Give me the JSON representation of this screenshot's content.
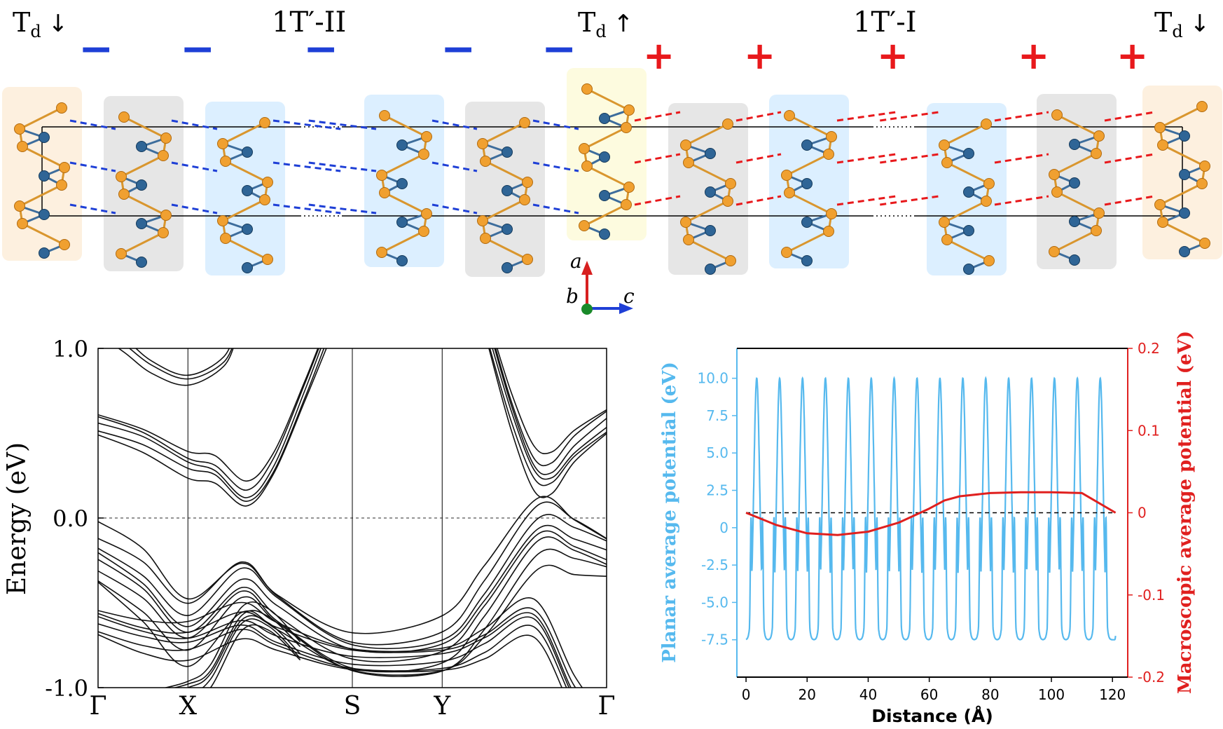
{
  "structure_panel": {
    "phase_labels": [
      {
        "main": "T",
        "sub": "d",
        "arrow": "↓"
      },
      {
        "main": "1T′-II"
      },
      {
        "main": "T",
        "sub": "d",
        "arrow": "↑"
      },
      {
        "main": "1T′-I"
      },
      {
        "main": "T",
        "sub": "d",
        "arrow": "↓"
      }
    ],
    "polarity_signs": [
      "−",
      "−",
      "−",
      "−",
      "−",
      "+",
      "+",
      "+",
      "+",
      "+"
    ],
    "layer_stacking": [
      "Td-down",
      "1T′-II",
      "1T′-II",
      "1T′-II",
      "1T′-II",
      "Td-up",
      "1T′-I",
      "1T′-I",
      "1T′-I",
      "1T′-I",
      "Td-down"
    ],
    "axes": {
      "a": "a",
      "b": "b",
      "c": "c"
    },
    "colors": {
      "minus": "#1e3fd6",
      "plus": "#e8191c",
      "metal_atom": "#2f6596",
      "chalcogen_atom": "#f0a030",
      "td_down_box": "#fdf0df",
      "gray_box": "#e6e6e6",
      "blue_box": "#dcefff",
      "td_up_box": "#fdfbdf"
    }
  },
  "chart_data": [
    {
      "type": "line",
      "title": "",
      "ylabel": "Energy (eV)",
      "xlabel": "",
      "ylim": [
        -1.0,
        1.0
      ],
      "yticks": [
        "1.0",
        "0.0",
        "-1.0"
      ],
      "kpath": [
        "Γ",
        "X",
        "S",
        "Y",
        "Γ"
      ],
      "kpath_positions": [
        0,
        1,
        2.83,
        3.83,
        5.66
      ],
      "fermi_level": 0.0,
      "bands": [
        {
          "name": "conduction-upper",
          "x": [
            0,
            0.3,
            0.6,
            1.0,
            1.4,
            1.55
          ],
          "y": [
            1.12,
            1.02,
            0.9,
            0.82,
            0.92,
            1.1
          ],
          "copies": 3,
          "spread": 0.035
        },
        {
          "name": "conduction-main",
          "x": [
            0,
            0.5,
            1.0,
            1.3,
            1.65,
            1.95,
            2.3,
            2.55
          ],
          "y": [
            0.56,
            0.48,
            0.33,
            0.28,
            0.12,
            0.3,
            0.75,
            1.1
          ],
          "copies": 5,
          "spread": 0.035
        },
        {
          "name": "conduction-right",
          "x": [
            4.35,
            4.6,
            4.85,
            5.05,
            5.3,
            5.66
          ],
          "y": [
            1.1,
            0.65,
            0.3,
            0.25,
            0.4,
            0.56
          ],
          "copies": 6,
          "spread": 0.04
        },
        {
          "name": "valence-top",
          "x": [
            0,
            0.5,
            1.0,
            1.6,
            2.0,
            2.83,
            3.83,
            4.3,
            4.9,
            5.3,
            5.66
          ],
          "y": [
            -0.22,
            -0.4,
            -0.66,
            -0.39,
            -0.55,
            -0.8,
            -0.76,
            -0.5,
            -0.08,
            -0.15,
            -0.22
          ],
          "copies": 8,
          "spread": 0.045
        },
        {
          "name": "valence-lower",
          "x": [
            0,
            0.5,
            1.0,
            1.6,
            2.0,
            2.83,
            3.83,
            4.3,
            4.85,
            5.3,
            5.66
          ],
          "y": [
            -0.6,
            -0.68,
            -0.72,
            -0.62,
            -0.72,
            -0.84,
            -0.82,
            -0.72,
            -0.58,
            -1.05,
            -1.3
          ],
          "copies": 6,
          "spread": 0.035
        },
        {
          "name": "steep-low",
          "x": [
            0.6,
            1.0,
            1.25,
            1.6,
            1.9,
            2.25
          ],
          "y": [
            -1.06,
            -1.0,
            -0.92,
            -0.6,
            -0.62,
            -0.8
          ],
          "copies": 5,
          "spread": 0.03
        }
      ]
    },
    {
      "type": "line",
      "title": "",
      "xlabel": "Distance (Å)",
      "ylabel_left": "Planar average potential (eV)",
      "ylabel_right": "Macroscopic average potential (eV)",
      "xlim": [
        -3,
        125
      ],
      "ylim_left": [
        -10,
        12
      ],
      "ylim_right": [
        -0.2,
        0.2
      ],
      "xticks": [
        "0",
        "20",
        "40",
        "60",
        "80",
        "100",
        "120"
      ],
      "yticks_left": [
        "10.0",
        "7.5",
        "5.0",
        "2.5",
        "0",
        "-2.5",
        "-5.0",
        "-7.5"
      ],
      "yticks_right": [
        "0.2",
        "0.1",
        "0",
        "-0.1",
        "-0.2"
      ],
      "series": [
        {
          "name": "Planar average potential",
          "axis": "left",
          "color": "#56b9ee",
          "peaks_x": [
            3.5,
            11,
            18.5,
            26,
            33.5,
            41,
            48.5,
            56,
            63.5,
            71,
            78.5,
            86,
            93.5,
            101,
            108.5,
            116
          ],
          "peak_value": 10.0,
          "min_value": -7.5,
          "range_x": [
            0,
            121
          ]
        },
        {
          "name": "Macroscopic average potential",
          "axis": "right",
          "color": "#e0201f",
          "x": [
            0,
            10,
            20,
            30,
            40,
            50,
            60,
            65,
            70,
            80,
            90,
            100,
            110,
            121
          ],
          "y": [
            0.0,
            -0.015,
            -0.025,
            -0.027,
            -0.023,
            -0.012,
            0.005,
            0.015,
            0.02,
            0.024,
            0.025,
            0.025,
            0.024,
            0.0
          ]
        }
      ],
      "reference_line": 0.0
    }
  ]
}
